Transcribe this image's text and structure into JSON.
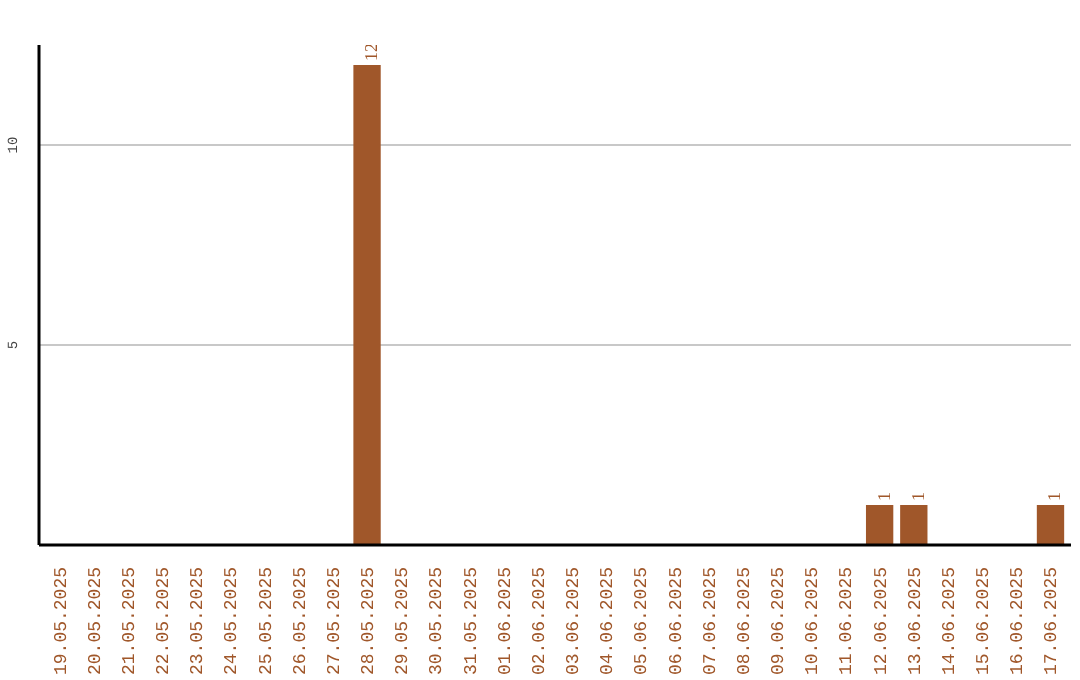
{
  "chart_data": {
    "type": "bar",
    "categories": [
      "19.05.2025",
      "20.05.2025",
      "21.05.2025",
      "22.05.2025",
      "23.05.2025",
      "24.05.2025",
      "25.05.2025",
      "26.05.2025",
      "27.05.2025",
      "28.05.2025",
      "29.05.2025",
      "30.05.2025",
      "31.05.2025",
      "01.06.2025",
      "02.06.2025",
      "03.06.2025",
      "04.06.2025",
      "05.06.2025",
      "06.06.2025",
      "07.06.2025",
      "08.06.2025",
      "09.06.2025",
      "10.06.2025",
      "11.06.2025",
      "12.06.2025",
      "13.06.2025",
      "14.06.2025",
      "15.06.2025",
      "16.06.2025",
      "17.06.2025"
    ],
    "values": [
      0,
      0,
      0,
      0,
      0,
      0,
      0,
      0,
      0,
      12,
      0,
      0,
      0,
      0,
      0,
      0,
      0,
      0,
      0,
      0,
      0,
      0,
      0,
      0,
      1,
      1,
      0,
      0,
      0,
      1
    ],
    "value_labels": [
      null,
      null,
      null,
      null,
      null,
      null,
      null,
      null,
      null,
      "12",
      null,
      null,
      null,
      null,
      null,
      null,
      null,
      null,
      null,
      null,
      null,
      null,
      null,
      null,
      "1",
      "1",
      null,
      null,
      null,
      "1"
    ],
    "color": "#a0572a",
    "ylim": [
      0,
      12.5
    ],
    "yticks": [
      5,
      10
    ],
    "grid": "y"
  }
}
